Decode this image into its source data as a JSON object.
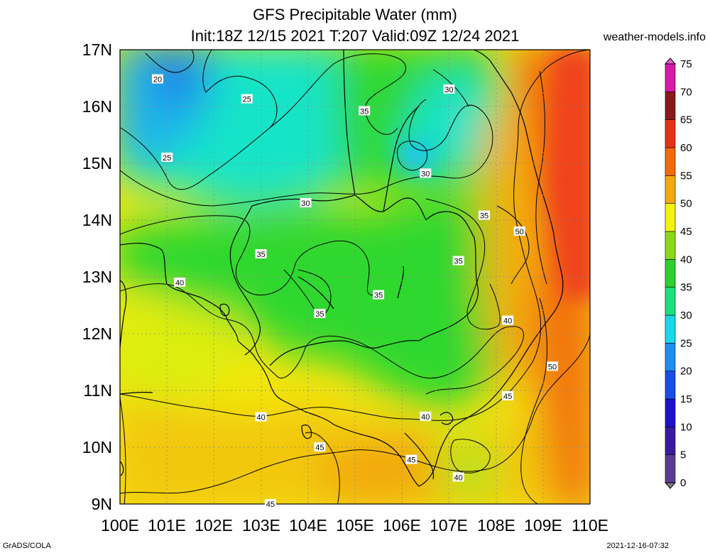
{
  "header": {
    "title_line1": "GFS Precipitable Water (mm)",
    "title_line2": "Init:18Z 12/15 2021 T:207 Valid:09Z 12/24 2021",
    "site": "weather-models.info"
  },
  "footer": {
    "left": "GrADS/COLA",
    "right": "2021-12-16-07:32"
  },
  "map": {
    "lat_labels": [
      "17N",
      "16N",
      "15N",
      "14N",
      "13N",
      "12N",
      "11N",
      "10N",
      "9N"
    ],
    "lon_labels": [
      "100E",
      "101E",
      "102E",
      "103E",
      "104E",
      "105E",
      "106E",
      "107E",
      "108E",
      "109E",
      "110E"
    ],
    "contour_labels": [
      {
        "text": "20",
        "lon": 100.8,
        "lat": 16.48
      },
      {
        "text": "25",
        "lon": 102.7,
        "lat": 16.13
      },
      {
        "text": "25",
        "lon": 101.0,
        "lat": 15.1
      },
      {
        "text": "30",
        "lon": 107.0,
        "lat": 16.3
      },
      {
        "text": "35",
        "lon": 105.2,
        "lat": 15.92
      },
      {
        "text": "30",
        "lon": 106.5,
        "lat": 14.82
      },
      {
        "text": "30",
        "lon": 103.95,
        "lat": 14.3
      },
      {
        "text": "35",
        "lon": 107.75,
        "lat": 14.08
      },
      {
        "text": "50",
        "lon": 108.5,
        "lat": 13.8
      },
      {
        "text": "35",
        "lon": 103.0,
        "lat": 13.4
      },
      {
        "text": "35",
        "lon": 107.2,
        "lat": 13.28
      },
      {
        "text": "40",
        "lon": 101.27,
        "lat": 12.9
      },
      {
        "text": "35",
        "lon": 105.5,
        "lat": 12.68
      },
      {
        "text": "35",
        "lon": 104.25,
        "lat": 12.35
      },
      {
        "text": "40",
        "lon": 108.25,
        "lat": 12.23
      },
      {
        "text": "50",
        "lon": 109.2,
        "lat": 11.42
      },
      {
        "text": "45",
        "lon": 108.25,
        "lat": 10.9
      },
      {
        "text": "40",
        "lon": 103.0,
        "lat": 10.53
      },
      {
        "text": "40",
        "lon": 106.5,
        "lat": 10.54
      },
      {
        "text": "45",
        "lon": 104.25,
        "lat": 10.0
      },
      {
        "text": "45",
        "lon": 106.2,
        "lat": 9.78
      },
      {
        "text": "40",
        "lon": 107.2,
        "lat": 9.47
      },
      {
        "text": "45",
        "lon": 103.2,
        "lat": 9.0
      }
    ]
  },
  "colorbar": {
    "levels": [
      "0",
      "5",
      "10",
      "15",
      "20",
      "25",
      "30",
      "35",
      "40",
      "45",
      "50",
      "55",
      "60",
      "65",
      "70",
      "75"
    ],
    "colors": [
      "#7f7f7f",
      "#5a3d8e",
      "#3a1a9e",
      "#1f10d0",
      "#1a4ce8",
      "#1f8ef0",
      "#19d8e8",
      "#1ae07e",
      "#2ecf2e",
      "#8fd61a",
      "#f2f20d",
      "#f2a90d",
      "#f26a0d",
      "#e83218",
      "#8b1a1a",
      "#d81aa8",
      "#f05ad8"
    ]
  }
}
